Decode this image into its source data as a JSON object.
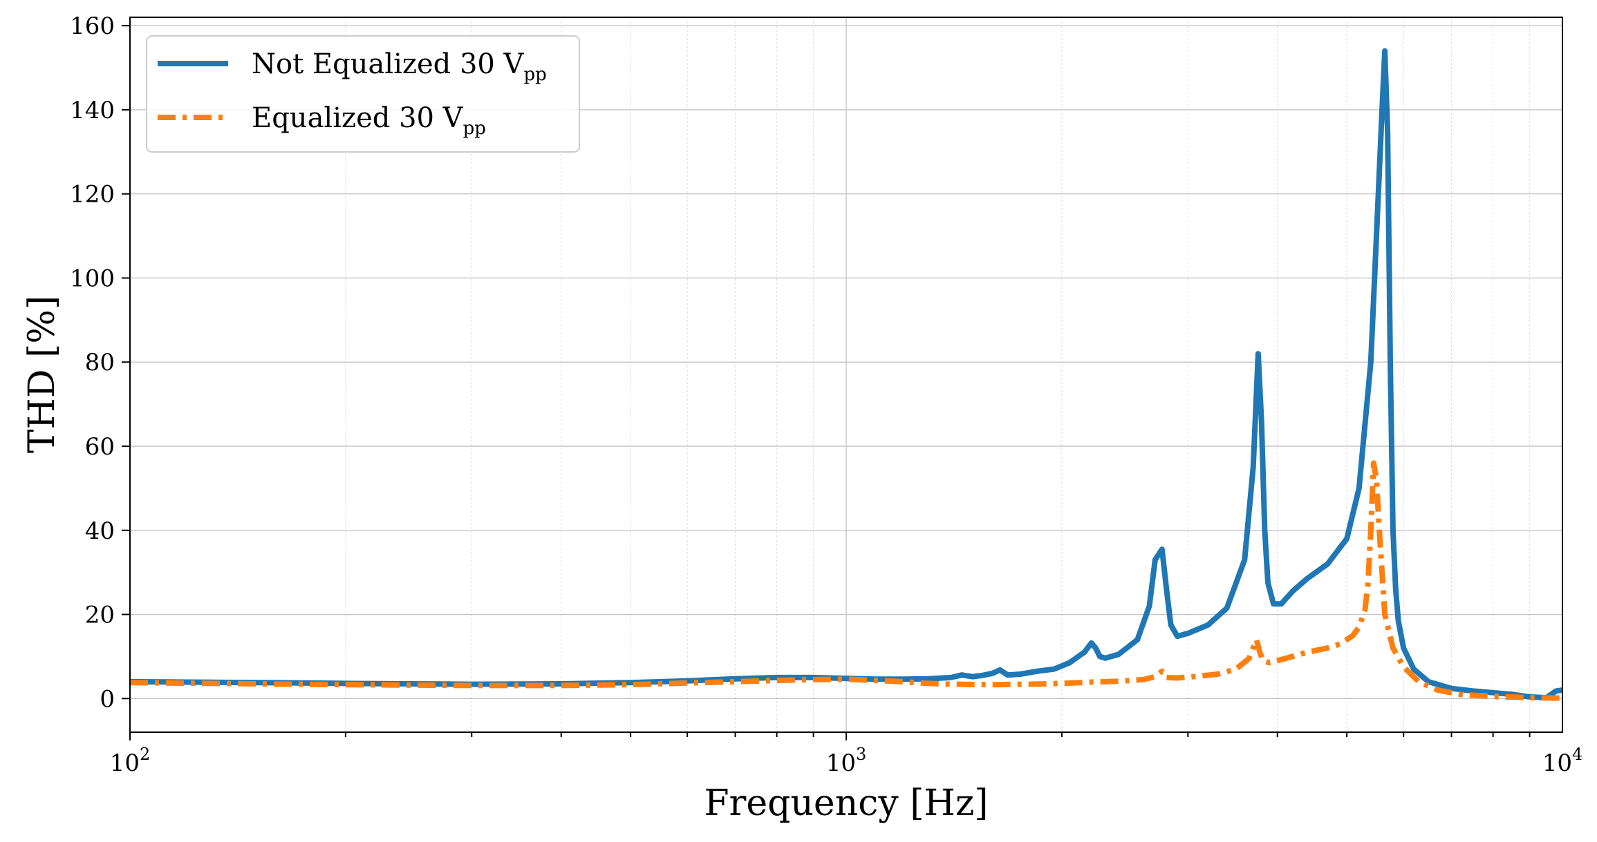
{
  "chart_data": {
    "type": "line",
    "xscale": "log",
    "xlabel": "Frequency [Hz]",
    "ylabel": "THD [%]",
    "xlim": [
      100,
      10000
    ],
    "ylim": [
      -8,
      162
    ],
    "grid": true,
    "legend_position": "top-left",
    "x_ticks": [
      {
        "value": 100,
        "base": "10",
        "exp": "2"
      },
      {
        "value": 1000,
        "base": "10",
        "exp": "3"
      },
      {
        "value": 10000,
        "base": "10",
        "exp": "4"
      }
    ],
    "y_ticks": [
      0,
      20,
      40,
      60,
      80,
      100,
      120,
      140,
      160
    ],
    "y_tick_labels": [
      "0",
      "20",
      "40",
      "60",
      "80",
      "100",
      "120",
      "140",
      "160"
    ],
    "series": [
      {
        "name": "Not Equalized 30 V",
        "name_sub": "pp",
        "style": "solid",
        "color": "#1f77b4",
        "x": [
          100,
          150,
          200,
          300,
          400,
          500,
          600,
          700,
          800,
          900,
          1000,
          1100,
          1200,
          1300,
          1400,
          1450,
          1500,
          1550,
          1600,
          1640,
          1680,
          1750,
          1850,
          1950,
          2050,
          2150,
          2200,
          2230,
          2260,
          2300,
          2400,
          2550,
          2650,
          2700,
          2760,
          2800,
          2840,
          2900,
          3000,
          3200,
          3400,
          3600,
          3700,
          3760,
          3800,
          3840,
          3880,
          3950,
          4050,
          4200,
          4400,
          4700,
          5000,
          5200,
          5400,
          5500,
          5600,
          5650,
          5700,
          5750,
          5800,
          5850,
          5900,
          6000,
          6200,
          6500,
          7000,
          7500,
          8000,
          8500,
          9000,
          9500,
          9800,
          10000
        ],
        "y": [
          4.0,
          3.8,
          3.6,
          3.4,
          3.5,
          3.8,
          4.2,
          4.7,
          5.0,
          5.0,
          4.8,
          4.6,
          4.6,
          4.7,
          5.0,
          5.6,
          5.2,
          5.5,
          6.0,
          6.8,
          5.6,
          5.8,
          6.5,
          7.0,
          8.5,
          11.0,
          13.2,
          12.0,
          10.0,
          9.6,
          10.5,
          14.0,
          22.0,
          33.0,
          35.5,
          26.0,
          17.5,
          14.8,
          15.5,
          17.5,
          21.5,
          33.0,
          55.0,
          82.0,
          66.0,
          40.0,
          27.5,
          22.5,
          22.5,
          25.5,
          28.5,
          32.0,
          38.0,
          50.0,
          80.0,
          110.0,
          140.0,
          154.0,
          135.0,
          80.0,
          40.0,
          26.0,
          18.5,
          12.0,
          7.0,
          4.0,
          2.4,
          1.8,
          1.4,
          1.0,
          0.4,
          0.2,
          1.8,
          2.0
        ]
      },
      {
        "name": "Equalized 30 V",
        "name_sub": "pp",
        "style": "dashdot",
        "color": "#ff7f0e",
        "x": [
          100,
          150,
          200,
          300,
          400,
          500,
          600,
          700,
          800,
          900,
          1000,
          1100,
          1200,
          1300,
          1400,
          1600,
          1800,
          2000,
          2200,
          2400,
          2600,
          2700,
          2760,
          2800,
          2900,
          3100,
          3300,
          3500,
          3650,
          3740,
          3780,
          3820,
          3900,
          4100,
          4400,
          4700,
          4900,
          5100,
          5200,
          5300,
          5350,
          5400,
          5450,
          5500,
          5550,
          5650,
          5800,
          6000,
          6300,
          6700,
          7200,
          8000,
          9000,
          10000
        ],
        "y": [
          3.8,
          3.5,
          3.3,
          3.1,
          3.1,
          3.3,
          3.7,
          4.0,
          4.3,
          4.5,
          4.6,
          4.3,
          4.0,
          3.6,
          3.4,
          3.3,
          3.4,
          3.6,
          3.9,
          4.1,
          4.5,
          5.2,
          6.5,
          5.0,
          4.9,
          5.3,
          5.8,
          7.0,
          9.5,
          14.0,
          11.0,
          9.0,
          8.5,
          9.5,
          11.0,
          12.0,
          13.0,
          15.0,
          17.0,
          21.0,
          27.0,
          40.0,
          56.0,
          52.0,
          40.0,
          20.0,
          12.0,
          7.5,
          4.0,
          2.0,
          1.0,
          0.5,
          0.2,
          0.1
        ]
      }
    ]
  }
}
